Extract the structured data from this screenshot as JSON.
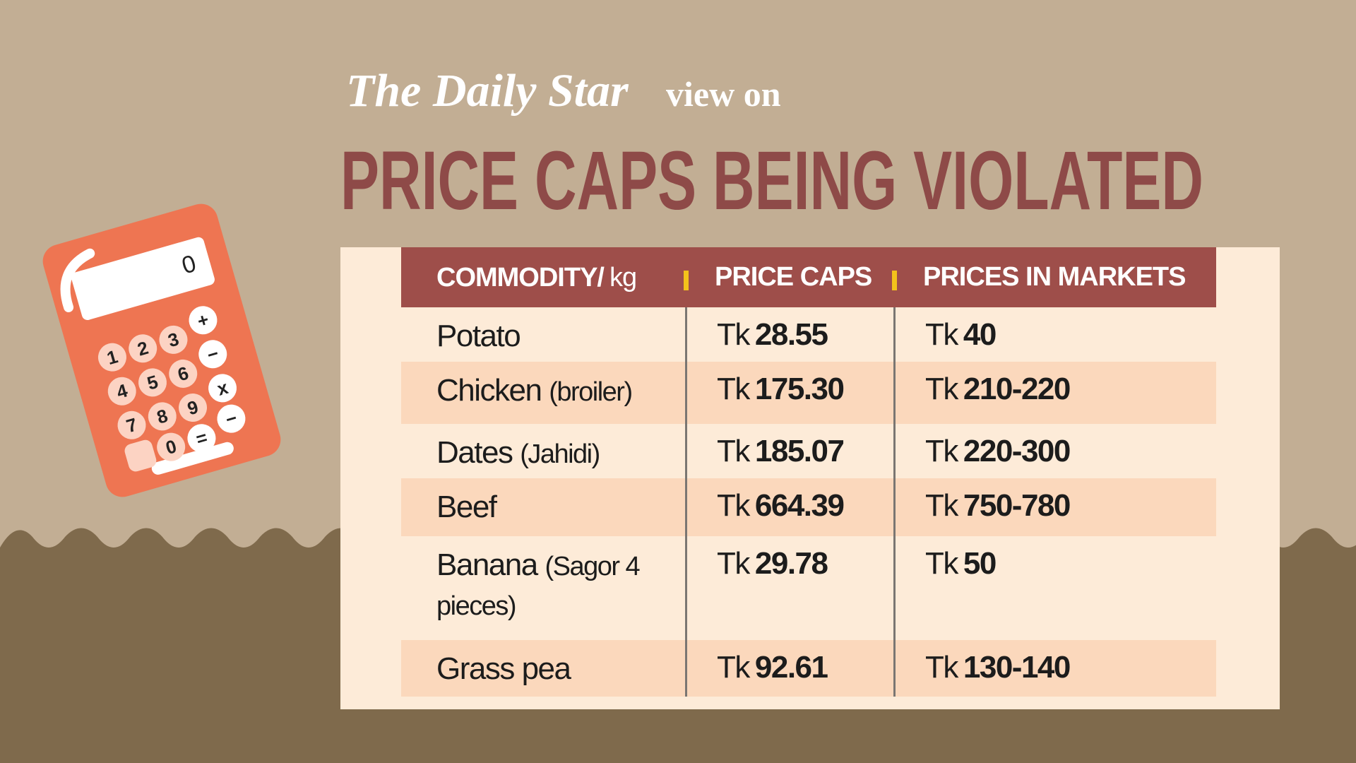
{
  "header": {
    "brand": "The Daily Star",
    "suffix": "view on",
    "title": "PRICE CAPS BEING VIOLATED"
  },
  "calculator": {
    "display": "0",
    "keys": [
      "1",
      "2",
      "3",
      "+",
      "−",
      "4",
      "5",
      "6",
      "x",
      "7",
      "8",
      "9",
      "−",
      "0",
      "="
    ]
  },
  "table": {
    "columns": [
      {
        "label": "COMMODITY/",
        "unit": "kg"
      },
      {
        "label": "PRICE CAPS"
      },
      {
        "label": "PRICES IN MARKETS"
      }
    ],
    "rows": [
      [
        {
          "name": "Potato"
        },
        {
          "unit": "Tk",
          "amount": "28.55"
        },
        {
          "unit": "Tk",
          "amount": "40"
        }
      ],
      [
        {
          "name": "Chicken",
          "note": "(broiler)"
        },
        {
          "unit": "Tk",
          "amount": "175.30"
        },
        {
          "unit": "Tk",
          "amount": "210-220"
        }
      ],
      [
        {
          "name": "Dates",
          "note": "(Jahidi)"
        },
        {
          "unit": "Tk",
          "amount": "185.07"
        },
        {
          "unit": "Tk",
          "amount": "220-300"
        }
      ],
      [
        {
          "name": "Beef"
        },
        {
          "unit": "Tk",
          "amount": "664.39"
        },
        {
          "unit": "Tk",
          "amount": "750-780"
        }
      ],
      [
        {
          "name": "Banana",
          "note": "(Sagor 4 pieces)"
        },
        {
          "unit": "Tk",
          "amount": "29.78"
        },
        {
          "unit": "Tk",
          "amount": "50"
        }
      ],
      [
        {
          "name": "Grass pea"
        },
        {
          "unit": "Tk",
          "amount": "92.61"
        },
        {
          "unit": "Tk",
          "amount": "130-140"
        }
      ]
    ]
  }
}
